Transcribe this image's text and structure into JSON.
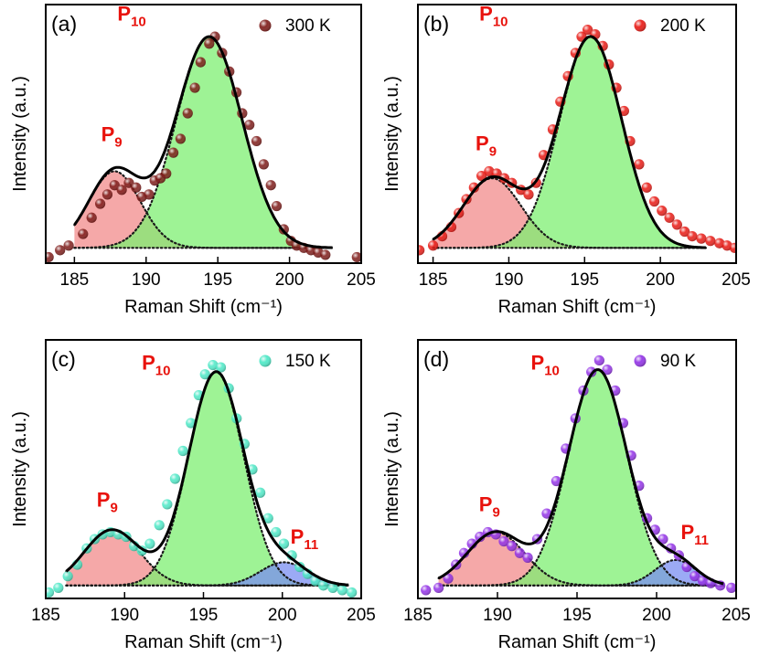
{
  "chart_data": [
    {
      "type": "scatter",
      "panel_label": "(a)",
      "legend": {
        "label": "300 K",
        "color": "#7a1412",
        "placement": "top-right"
      },
      "xlabel": "Raman Shift (cm⁻¹)",
      "ylabel": "Intensity (a.u.)",
      "xlim": [
        183,
        205
      ],
      "ylim": [
        0,
        1
      ],
      "xticks": [
        "185",
        "190",
        "195",
        "200",
        "205"
      ],
      "xtick_values": [
        185,
        190,
        195,
        200,
        205
      ],
      "fit_range": [
        185,
        203
      ],
      "baseline": 0.05,
      "peak_colors": [
        "#f28b8b",
        "#7eef72",
        "#7a8ef2"
      ],
      "peaks": [
        {
          "label": "P9",
          "base": "P",
          "sub": "9",
          "center": 187.8,
          "height": 0.33,
          "width": 1.8,
          "label_at": [
            187.6,
            0.51
          ]
        },
        {
          "label": "P10",
          "base": "P",
          "sub": "10",
          "center": 194.4,
          "height": 0.91,
          "width": 2.3,
          "label_at": [
            189.0,
            1.03
          ]
        }
      ],
      "points": {
        "x": [
          183.2,
          184.0,
          184.6,
          185.6,
          186.2,
          186.8,
          187.3,
          187.8,
          188.3,
          188.8,
          189.3,
          189.7,
          190.2,
          190.6,
          191.0,
          191.4,
          191.9,
          192.4,
          192.9,
          193.4,
          193.8,
          194.4,
          194.8,
          195.3,
          195.8,
          196.3,
          196.7,
          197.2,
          197.7,
          198.2,
          198.7,
          199.1,
          199.6,
          200.1,
          200.5,
          201.0,
          201.5,
          202.0,
          202.5,
          204.7
        ],
        "y": [
          0.01,
          0.04,
          0.06,
          0.11,
          0.18,
          0.24,
          0.28,
          0.32,
          0.3,
          0.33,
          0.31,
          0.27,
          0.28,
          0.34,
          0.35,
          0.37,
          0.46,
          0.52,
          0.63,
          0.74,
          0.85,
          0.93,
          0.96,
          0.89,
          0.81,
          0.72,
          0.63,
          0.58,
          0.51,
          0.41,
          0.32,
          0.23,
          0.13,
          0.08,
          0.06,
          0.05,
          0.04,
          0.03,
          0.02,
          0.01
        ]
      }
    },
    {
      "type": "scatter",
      "panel_label": "(b)",
      "legend": {
        "label": "200 K",
        "color": "#e8120c",
        "placement": "top-right"
      },
      "xlabel": "Raman Shift (cm⁻¹)",
      "ylabel": "Intensity (a.u.)",
      "xlim": [
        184,
        205
      ],
      "ylim": [
        0,
        1
      ],
      "xticks": [
        "185",
        "190",
        "195",
        "200",
        "205"
      ],
      "xtick_values": [
        185,
        190,
        195,
        200,
        205
      ],
      "fit_range": [
        185,
        203
      ],
      "baseline": 0.05,
      "peak_colors": [
        "#f28b8b",
        "#7eef72",
        "#7a8ef2"
      ],
      "peaks": [
        {
          "label": "P9",
          "base": "P",
          "sub": "9",
          "center": 188.9,
          "height": 0.3,
          "width": 1.9,
          "label_at": [
            188.5,
            0.47
          ]
        },
        {
          "label": "P10",
          "base": "P",
          "sub": "10",
          "center": 195.4,
          "height": 0.91,
          "width": 2.05,
          "label_at": [
            189.0,
            1.03
          ]
        }
      ],
      "points": {
        "x": [
          184.1,
          185.0,
          185.6,
          186.2,
          186.7,
          187.2,
          187.7,
          188.2,
          188.7,
          189.2,
          189.7,
          190.2,
          190.8,
          191.3,
          191.8,
          192.3,
          192.9,
          193.4,
          193.9,
          194.4,
          194.8,
          195.2,
          195.7,
          196.2,
          196.6,
          197.1,
          197.6,
          198.0,
          198.6,
          199.1,
          199.6,
          200.1,
          200.6,
          201.1,
          201.6,
          202.1,
          202.7,
          203.3,
          203.9,
          204.4,
          204.9
        ],
        "y": [
          0.04,
          0.06,
          0.1,
          0.14,
          0.2,
          0.26,
          0.31,
          0.36,
          0.38,
          0.37,
          0.35,
          0.33,
          0.3,
          0.28,
          0.33,
          0.45,
          0.56,
          0.68,
          0.79,
          0.89,
          0.96,
          0.99,
          0.97,
          0.92,
          0.84,
          0.74,
          0.64,
          0.51,
          0.41,
          0.31,
          0.25,
          0.21,
          0.18,
          0.15,
          0.12,
          0.1,
          0.09,
          0.08,
          0.07,
          0.06,
          0.05
        ]
      }
    },
    {
      "type": "scatter",
      "panel_label": "(c)",
      "legend": {
        "label": "150 K",
        "color": "#46e8c4",
        "placement": "top-right"
      },
      "xlabel": "Raman Shift (cm⁻¹)",
      "ylabel": "Intensity (a.u.)",
      "xlim": [
        185,
        205
      ],
      "ylim": [
        0,
        1
      ],
      "xticks": [
        "185",
        "190",
        "195",
        "200",
        "205"
      ],
      "xtick_values": [
        185,
        190,
        195,
        200,
        205
      ],
      "fit_range": [
        186.3,
        204.2
      ],
      "baseline": 0.04,
      "peak_colors": [
        "#f28b8b",
        "#7eef72",
        "#7a8ef2"
      ],
      "peaks": [
        {
          "label": "P9",
          "base": "P",
          "sub": "9",
          "center": 189.2,
          "height": 0.24,
          "width": 1.75,
          "label_at": [
            188.9,
            0.38
          ]
        },
        {
          "label": "P10",
          "base": "P",
          "sub": "10",
          "center": 195.8,
          "height": 0.92,
          "width": 1.75,
          "label_at": [
            192.0,
            0.97
          ]
        },
        {
          "label": "P11",
          "base": "P",
          "sub": "11",
          "center": 200.1,
          "height": 0.1,
          "width": 1.5,
          "label_at": [
            201.4,
            0.22
          ]
        }
      ],
      "points": {
        "x": [
          185.2,
          185.8,
          186.4,
          187.0,
          187.6,
          188.1,
          188.6,
          189.1,
          189.6,
          190.1,
          190.6,
          191.1,
          191.6,
          192.2,
          192.7,
          193.2,
          193.7,
          194.2,
          194.7,
          195.1,
          195.6,
          196.1,
          196.6,
          197.1,
          197.6,
          198.1,
          198.6,
          199.1,
          199.6,
          200.1,
          200.6,
          201.1,
          201.6,
          202.1,
          202.6,
          203.2,
          203.8,
          204.4
        ],
        "y": [
          0.01,
          0.03,
          0.08,
          0.13,
          0.2,
          0.24,
          0.26,
          0.27,
          0.26,
          0.25,
          0.21,
          0.19,
          0.22,
          0.3,
          0.39,
          0.5,
          0.62,
          0.74,
          0.86,
          0.95,
          0.99,
          0.98,
          0.89,
          0.76,
          0.65,
          0.54,
          0.44,
          0.33,
          0.27,
          0.22,
          0.17,
          0.12,
          0.09,
          0.06,
          0.04,
          0.03,
          0.02,
          0.01
        ]
      }
    },
    {
      "type": "scatter",
      "panel_label": "(d)",
      "legend": {
        "label": "90 K",
        "color": "#8f2ce6",
        "placement": "top-right"
      },
      "xlabel": "Raman Shift (cm⁻¹)",
      "ylabel": "Intensity (a.u.)",
      "xlim": [
        185,
        205
      ],
      "ylim": [
        0,
        1
      ],
      "xticks": [
        "185",
        "190",
        "195",
        "200",
        "205"
      ],
      "xtick_values": [
        185,
        190,
        195,
        200,
        205
      ],
      "fit_range": [
        186.3,
        204.2
      ],
      "baseline": 0.04,
      "peak_colors": [
        "#f28b8b",
        "#7eef72",
        "#7a8ef2"
      ],
      "peaks": [
        {
          "label": "P9",
          "base": "P",
          "sub": "9",
          "center": 189.9,
          "height": 0.23,
          "width": 1.8,
          "label_at": [
            189.5,
            0.36
          ]
        },
        {
          "label": "P10",
          "base": "P",
          "sub": "10",
          "center": 196.3,
          "height": 0.93,
          "width": 1.85,
          "label_at": [
            193.0,
            0.97
          ]
        },
        {
          "label": "P11",
          "base": "P",
          "sub": "11",
          "center": 201.2,
          "height": 0.11,
          "width": 1.3,
          "label_at": [
            202.4,
            0.24
          ]
        }
      ],
      "points": {
        "x": [
          185.5,
          186.3,
          186.9,
          187.4,
          187.9,
          188.4,
          188.9,
          189.4,
          189.9,
          190.4,
          190.9,
          191.4,
          191.9,
          192.5,
          193.1,
          193.7,
          194.3,
          194.9,
          195.4,
          195.9,
          196.4,
          196.9,
          197.4,
          197.9,
          198.4,
          198.9,
          199.4,
          199.9,
          200.4,
          200.9,
          201.4,
          201.9,
          202.4,
          202.9,
          203.4,
          204.0,
          204.7
        ],
        "y": [
          0.02,
          0.03,
          0.07,
          0.13,
          0.18,
          0.22,
          0.25,
          0.27,
          0.26,
          0.23,
          0.21,
          0.18,
          0.16,
          0.24,
          0.35,
          0.49,
          0.63,
          0.76,
          0.88,
          0.96,
          1.01,
          0.97,
          0.88,
          0.74,
          0.6,
          0.47,
          0.33,
          0.28,
          0.24,
          0.2,
          0.17,
          0.12,
          0.08,
          0.06,
          0.05,
          0.04,
          0.03
        ]
      }
    }
  ]
}
